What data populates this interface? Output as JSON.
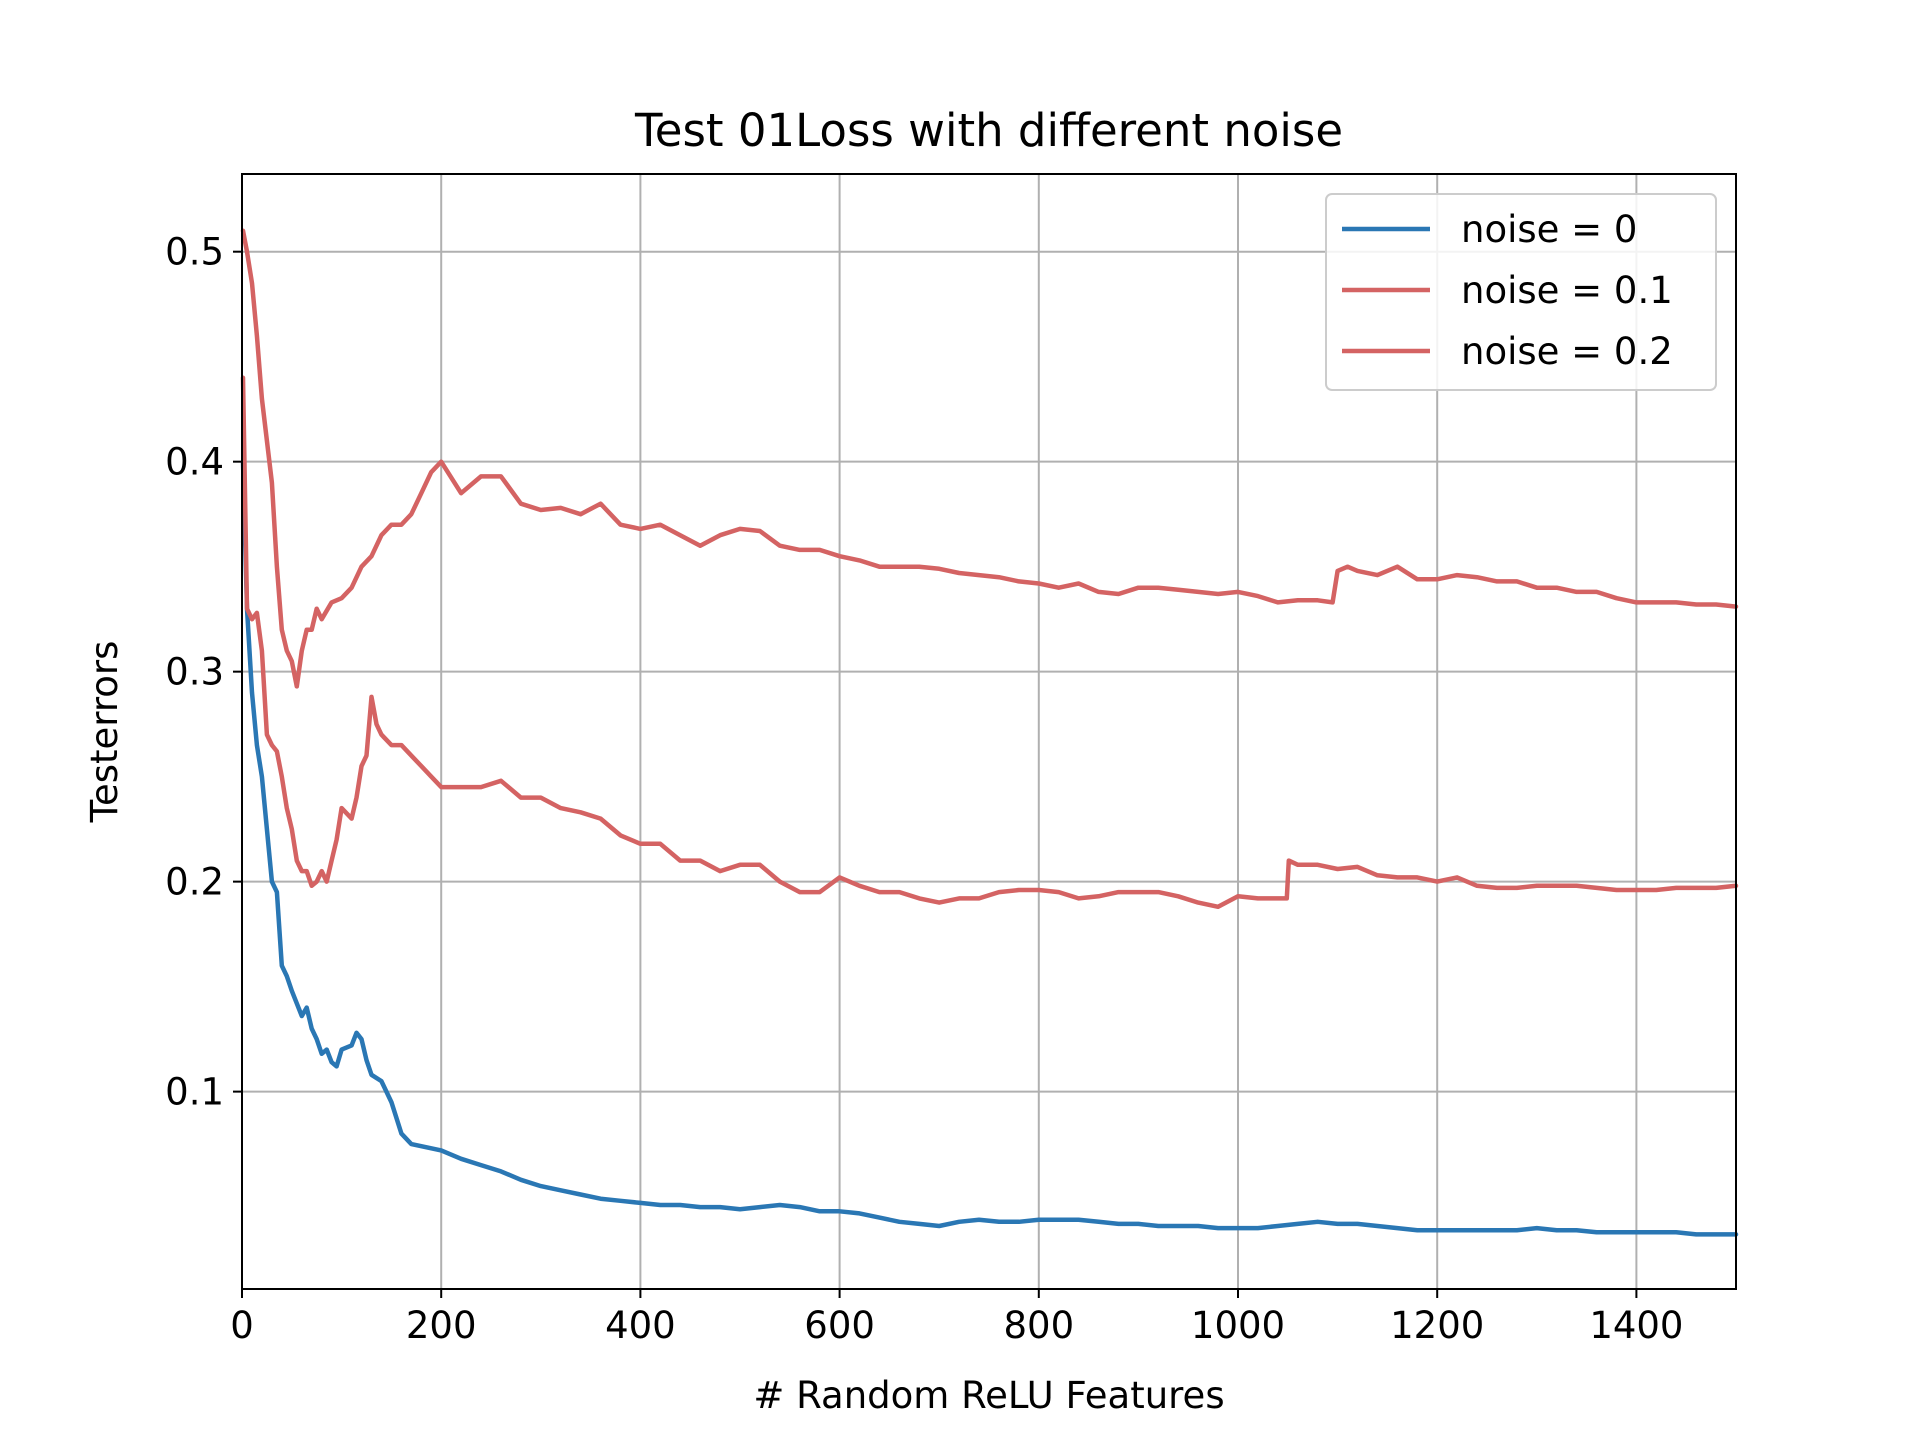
{
  "chart_data": {
    "type": "line",
    "title": "Test 01Loss with different noise",
    "xlabel": "# Random ReLU Features",
    "ylabel": "Testerrors",
    "xlim": [
      0,
      1500
    ],
    "ylim": [
      0.006,
      0.537
    ],
    "xticks": [
      0,
      200,
      400,
      600,
      800,
      1000,
      1200,
      1400
    ],
    "xtick_labels": [
      "0",
      "200",
      "400",
      "600",
      "800",
      "1000",
      "1200",
      "1400"
    ],
    "yticks": [
      0.1,
      0.2,
      0.3,
      0.4,
      0.5
    ],
    "ytick_labels": [
      "0.1",
      "0.2",
      "0.3",
      "0.4",
      "0.5"
    ],
    "grid": true,
    "legend_position": "top-right",
    "series": [
      {
        "name": "noise = 0",
        "color": "#2a77b4",
        "points": [
          [
            1,
            0.4
          ],
          [
            5,
            0.33
          ],
          [
            10,
            0.29
          ],
          [
            15,
            0.265
          ],
          [
            20,
            0.25
          ],
          [
            25,
            0.225
          ],
          [
            30,
            0.2
          ],
          [
            35,
            0.195
          ],
          [
            40,
            0.16
          ],
          [
            45,
            0.155
          ],
          [
            50,
            0.148
          ],
          [
            55,
            0.142
          ],
          [
            60,
            0.136
          ],
          [
            65,
            0.14
          ],
          [
            70,
            0.13
          ],
          [
            75,
            0.125
          ],
          [
            80,
            0.118
          ],
          [
            85,
            0.12
          ],
          [
            90,
            0.114
          ],
          [
            95,
            0.112
          ],
          [
            100,
            0.12
          ],
          [
            110,
            0.122
          ],
          [
            115,
            0.128
          ],
          [
            120,
            0.125
          ],
          [
            125,
            0.115
          ],
          [
            130,
            0.108
          ],
          [
            140,
            0.105
          ],
          [
            150,
            0.095
          ],
          [
            160,
            0.08
          ],
          [
            170,
            0.075
          ],
          [
            180,
            0.074
          ],
          [
            200,
            0.072
          ],
          [
            220,
            0.068
          ],
          [
            240,
            0.065
          ],
          [
            260,
            0.062
          ],
          [
            280,
            0.058
          ],
          [
            300,
            0.055
          ],
          [
            320,
            0.053
          ],
          [
            340,
            0.051
          ],
          [
            360,
            0.049
          ],
          [
            380,
            0.048
          ],
          [
            400,
            0.047
          ],
          [
            420,
            0.046
          ],
          [
            440,
            0.046
          ],
          [
            460,
            0.045
          ],
          [
            480,
            0.045
          ],
          [
            500,
            0.044
          ],
          [
            520,
            0.045
          ],
          [
            540,
            0.046
          ],
          [
            560,
            0.045
          ],
          [
            580,
            0.043
          ],
          [
            600,
            0.043
          ],
          [
            620,
            0.042
          ],
          [
            640,
            0.04
          ],
          [
            660,
            0.038
          ],
          [
            680,
            0.037
          ],
          [
            700,
            0.036
          ],
          [
            720,
            0.038
          ],
          [
            740,
            0.039
          ],
          [
            760,
            0.038
          ],
          [
            780,
            0.038
          ],
          [
            800,
            0.039
          ],
          [
            820,
            0.039
          ],
          [
            840,
            0.039
          ],
          [
            860,
            0.038
          ],
          [
            880,
            0.037
          ],
          [
            900,
            0.037
          ],
          [
            920,
            0.036
          ],
          [
            940,
            0.036
          ],
          [
            960,
            0.036
          ],
          [
            980,
            0.035
          ],
          [
            1000,
            0.035
          ],
          [
            1020,
            0.035
          ],
          [
            1040,
            0.036
          ],
          [
            1060,
            0.037
          ],
          [
            1080,
            0.038
          ],
          [
            1100,
            0.037
          ],
          [
            1120,
            0.037
          ],
          [
            1140,
            0.036
          ],
          [
            1160,
            0.035
          ],
          [
            1180,
            0.034
          ],
          [
            1200,
            0.034
          ],
          [
            1220,
            0.034
          ],
          [
            1240,
            0.034
          ],
          [
            1260,
            0.034
          ],
          [
            1280,
            0.034
          ],
          [
            1300,
            0.035
          ],
          [
            1320,
            0.034
          ],
          [
            1340,
            0.034
          ],
          [
            1360,
            0.033
          ],
          [
            1380,
            0.033
          ],
          [
            1400,
            0.033
          ],
          [
            1420,
            0.033
          ],
          [
            1440,
            0.033
          ],
          [
            1460,
            0.032
          ],
          [
            1480,
            0.032
          ],
          [
            1500,
            0.032
          ]
        ]
      },
      {
        "name": "noise = 0.1",
        "color": "#d46363",
        "points": [
          [
            1,
            0.44
          ],
          [
            5,
            0.33
          ],
          [
            10,
            0.325
          ],
          [
            15,
            0.328
          ],
          [
            20,
            0.31
          ],
          [
            25,
            0.27
          ],
          [
            30,
            0.265
          ],
          [
            35,
            0.262
          ],
          [
            40,
            0.25
          ],
          [
            45,
            0.235
          ],
          [
            50,
            0.225
          ],
          [
            55,
            0.21
          ],
          [
            60,
            0.205
          ],
          [
            65,
            0.205
          ],
          [
            70,
            0.198
          ],
          [
            75,
            0.2
          ],
          [
            80,
            0.205
          ],
          [
            85,
            0.2
          ],
          [
            90,
            0.21
          ],
          [
            95,
            0.22
          ],
          [
            100,
            0.235
          ],
          [
            110,
            0.23
          ],
          [
            115,
            0.24
          ],
          [
            120,
            0.255
          ],
          [
            125,
            0.26
          ],
          [
            130,
            0.288
          ],
          [
            135,
            0.275
          ],
          [
            140,
            0.27
          ],
          [
            150,
            0.265
          ],
          [
            160,
            0.265
          ],
          [
            170,
            0.26
          ],
          [
            180,
            0.255
          ],
          [
            190,
            0.25
          ],
          [
            200,
            0.245
          ],
          [
            220,
            0.245
          ],
          [
            240,
            0.245
          ],
          [
            260,
            0.248
          ],
          [
            280,
            0.24
          ],
          [
            300,
            0.24
          ],
          [
            320,
            0.235
          ],
          [
            340,
            0.233
          ],
          [
            360,
            0.23
          ],
          [
            380,
            0.222
          ],
          [
            400,
            0.218
          ],
          [
            420,
            0.218
          ],
          [
            440,
            0.21
          ],
          [
            460,
            0.21
          ],
          [
            480,
            0.205
          ],
          [
            500,
            0.208
          ],
          [
            520,
            0.208
          ],
          [
            540,
            0.2
          ],
          [
            560,
            0.195
          ],
          [
            580,
            0.195
          ],
          [
            600,
            0.202
          ],
          [
            620,
            0.198
          ],
          [
            640,
            0.195
          ],
          [
            660,
            0.195
          ],
          [
            680,
            0.192
          ],
          [
            700,
            0.19
          ],
          [
            720,
            0.192
          ],
          [
            740,
            0.192
          ],
          [
            760,
            0.195
          ],
          [
            780,
            0.196
          ],
          [
            800,
            0.196
          ],
          [
            820,
            0.195
          ],
          [
            840,
            0.192
          ],
          [
            860,
            0.193
          ],
          [
            880,
            0.195
          ],
          [
            900,
            0.195
          ],
          [
            920,
            0.195
          ],
          [
            940,
            0.193
          ],
          [
            960,
            0.19
          ],
          [
            980,
            0.188
          ],
          [
            1000,
            0.193
          ],
          [
            1020,
            0.192
          ],
          [
            1040,
            0.192
          ],
          [
            1049,
            0.192
          ],
          [
            1051,
            0.21
          ],
          [
            1060,
            0.208
          ],
          [
            1080,
            0.208
          ],
          [
            1100,
            0.206
          ],
          [
            1120,
            0.207
          ],
          [
            1140,
            0.203
          ],
          [
            1160,
            0.202
          ],
          [
            1180,
            0.202
          ],
          [
            1200,
            0.2
          ],
          [
            1220,
            0.202
          ],
          [
            1240,
            0.198
          ],
          [
            1260,
            0.197
          ],
          [
            1280,
            0.197
          ],
          [
            1300,
            0.198
          ],
          [
            1320,
            0.198
          ],
          [
            1340,
            0.198
          ],
          [
            1360,
            0.197
          ],
          [
            1380,
            0.196
          ],
          [
            1400,
            0.196
          ],
          [
            1420,
            0.196
          ],
          [
            1440,
            0.197
          ],
          [
            1460,
            0.197
          ],
          [
            1480,
            0.197
          ],
          [
            1500,
            0.198
          ]
        ]
      },
      {
        "name": "noise = 0.2",
        "color": "#d46363",
        "points": [
          [
            1,
            0.51
          ],
          [
            5,
            0.5
          ],
          [
            10,
            0.485
          ],
          [
            15,
            0.46
          ],
          [
            20,
            0.43
          ],
          [
            25,
            0.41
          ],
          [
            30,
            0.39
          ],
          [
            35,
            0.35
          ],
          [
            40,
            0.32
          ],
          [
            45,
            0.31
          ],
          [
            50,
            0.305
          ],
          [
            55,
            0.293
          ],
          [
            60,
            0.31
          ],
          [
            65,
            0.32
          ],
          [
            70,
            0.32
          ],
          [
            75,
            0.33
          ],
          [
            80,
            0.325
          ],
          [
            90,
            0.333
          ],
          [
            100,
            0.335
          ],
          [
            110,
            0.34
          ],
          [
            120,
            0.35
          ],
          [
            130,
            0.355
          ],
          [
            140,
            0.365
          ],
          [
            150,
            0.37
          ],
          [
            160,
            0.37
          ],
          [
            170,
            0.375
          ],
          [
            180,
            0.385
          ],
          [
            190,
            0.395
          ],
          [
            200,
            0.4
          ],
          [
            220,
            0.385
          ],
          [
            240,
            0.393
          ],
          [
            260,
            0.393
          ],
          [
            280,
            0.38
          ],
          [
            300,
            0.377
          ],
          [
            320,
            0.378
          ],
          [
            340,
            0.375
          ],
          [
            360,
            0.38
          ],
          [
            380,
            0.37
          ],
          [
            400,
            0.368
          ],
          [
            420,
            0.37
          ],
          [
            440,
            0.365
          ],
          [
            460,
            0.36
          ],
          [
            480,
            0.365
          ],
          [
            500,
            0.368
          ],
          [
            520,
            0.367
          ],
          [
            540,
            0.36
          ],
          [
            560,
            0.358
          ],
          [
            580,
            0.358
          ],
          [
            600,
            0.355
          ],
          [
            620,
            0.353
          ],
          [
            640,
            0.35
          ],
          [
            660,
            0.35
          ],
          [
            680,
            0.35
          ],
          [
            700,
            0.349
          ],
          [
            720,
            0.347
          ],
          [
            740,
            0.346
          ],
          [
            760,
            0.345
          ],
          [
            780,
            0.343
          ],
          [
            800,
            0.342
          ],
          [
            820,
            0.34
          ],
          [
            840,
            0.342
          ],
          [
            860,
            0.338
          ],
          [
            880,
            0.337
          ],
          [
            900,
            0.34
          ],
          [
            920,
            0.34
          ],
          [
            940,
            0.339
          ],
          [
            960,
            0.338
          ],
          [
            980,
            0.337
          ],
          [
            1000,
            0.338
          ],
          [
            1020,
            0.336
          ],
          [
            1040,
            0.333
          ],
          [
            1060,
            0.334
          ],
          [
            1080,
            0.334
          ],
          [
            1095,
            0.333
          ],
          [
            1100,
            0.348
          ],
          [
            1110,
            0.35
          ],
          [
            1120,
            0.348
          ],
          [
            1140,
            0.346
          ],
          [
            1160,
            0.35
          ],
          [
            1180,
            0.344
          ],
          [
            1200,
            0.344
          ],
          [
            1220,
            0.346
          ],
          [
            1240,
            0.345
          ],
          [
            1260,
            0.343
          ],
          [
            1280,
            0.343
          ],
          [
            1300,
            0.34
          ],
          [
            1320,
            0.34
          ],
          [
            1340,
            0.338
          ],
          [
            1360,
            0.338
          ],
          [
            1380,
            0.335
          ],
          [
            1400,
            0.333
          ],
          [
            1420,
            0.333
          ],
          [
            1440,
            0.333
          ],
          [
            1460,
            0.332
          ],
          [
            1480,
            0.332
          ],
          [
            1500,
            0.331
          ]
        ]
      }
    ]
  }
}
